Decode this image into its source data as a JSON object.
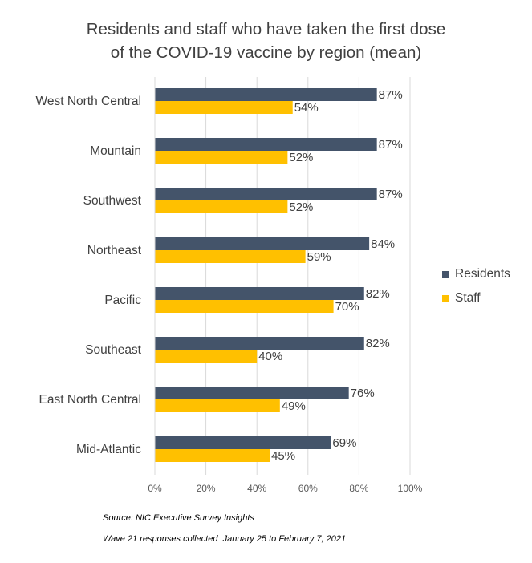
{
  "title_lines": [
    "Residents and staff who have taken the first dose",
    "of the COVID-19 vaccine by region (mean)"
  ],
  "footnotes": [
    "Source: NIC Executive Survey Insights",
    "Wave 21 responses collected  January 25 to February 7, 2021"
  ],
  "colors": {
    "residents": "#44546A",
    "staff": "#FFC000",
    "grid": "#D9D9D9"
  },
  "chart_data": {
    "type": "bar",
    "orientation": "horizontal",
    "title": "Residents and staff who have taken the first dose of the COVID-19 vaccine by region (mean)",
    "categories": [
      "West North Central",
      "Mountain",
      "Southwest",
      "Northeast",
      "Pacific",
      "Southeast",
      "East North Central",
      "Mid-Atlantic"
    ],
    "series": [
      {
        "name": "Residents",
        "values": [
          87,
          87,
          87,
          84,
          82,
          82,
          76,
          69
        ],
        "labels": [
          "87%",
          "87%",
          "87%",
          "84%",
          "82%",
          "82%",
          "76%",
          "69%"
        ]
      },
      {
        "name": "Staff",
        "values": [
          54,
          52,
          52,
          59,
          70,
          40,
          49,
          45
        ],
        "labels": [
          "54%",
          "52%",
          "52%",
          "59%",
          "70%",
          "40%",
          "49%",
          "45%"
        ]
      }
    ],
    "xlim": [
      0,
      100
    ],
    "xticks": [
      "0%",
      "20%",
      "40%",
      "60%",
      "80%",
      "100%"
    ],
    "grid": true,
    "legend_position": "right"
  }
}
